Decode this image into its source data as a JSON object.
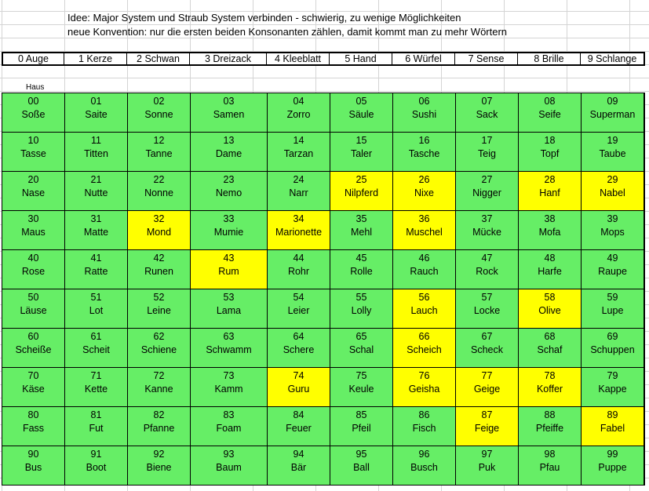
{
  "notes": [
    "Idee: Major System und Straub System verbinden - schwierig, zu wenige Möglichkeiten",
    "neue Konvention: nur die ersten beiden Konsonanten zählen, damit kommt man zu mehr Wörtern"
  ],
  "header": [
    "0 Auge",
    "1 Kerze",
    "2 Schwan",
    "3 Dreizack",
    "4 Kleeblatt",
    "5 Hand",
    "6 Würfel",
    "7 Sense",
    "8 Brille",
    "9 Schlange"
  ],
  "row_label": "Haus",
  "colors": {
    "green": "#66ee66",
    "yellow": "#ffff00"
  },
  "cells": [
    {
      "num": "00",
      "word": "Soße"
    },
    {
      "num": "01",
      "word": "Saite"
    },
    {
      "num": "02",
      "word": "Sonne"
    },
    {
      "num": "03",
      "word": "Samen"
    },
    {
      "num": "04",
      "word": "Zorro"
    },
    {
      "num": "05",
      "word": "Säule"
    },
    {
      "num": "06",
      "word": "Sushi"
    },
    {
      "num": "07",
      "word": "Sack"
    },
    {
      "num": "08",
      "word": "Seife"
    },
    {
      "num": "09",
      "word": "Superman"
    },
    {
      "num": "10",
      "word": "Tasse"
    },
    {
      "num": "11",
      "word": "Titten"
    },
    {
      "num": "12",
      "word": "Tanne"
    },
    {
      "num": "13",
      "word": "Dame"
    },
    {
      "num": "14",
      "word": "Tarzan"
    },
    {
      "num": "15",
      "word": "Taler"
    },
    {
      "num": "16",
      "word": "Tasche"
    },
    {
      "num": "17",
      "word": "Teig"
    },
    {
      "num": "18",
      "word": "Topf"
    },
    {
      "num": "19",
      "word": "Taube"
    },
    {
      "num": "20",
      "word": "Nase"
    },
    {
      "num": "21",
      "word": "Nutte"
    },
    {
      "num": "22",
      "word": "Nonne"
    },
    {
      "num": "23",
      "word": "Nemo"
    },
    {
      "num": "24",
      "word": "Narr"
    },
    {
      "num": "25",
      "word": "Nilpferd",
      "highlight": true
    },
    {
      "num": "26",
      "word": "Nixe",
      "highlight": true
    },
    {
      "num": "27",
      "word": "Nigger"
    },
    {
      "num": "28",
      "word": "Hanf",
      "highlight": true
    },
    {
      "num": "29",
      "word": "Nabel",
      "highlight": true
    },
    {
      "num": "30",
      "word": "Maus"
    },
    {
      "num": "31",
      "word": "Matte"
    },
    {
      "num": "32",
      "word": "Mond",
      "highlight": true
    },
    {
      "num": "33",
      "word": "Mumie"
    },
    {
      "num": "34",
      "word": "Marionette",
      "highlight": true
    },
    {
      "num": "35",
      "word": "Mehl"
    },
    {
      "num": "36",
      "word": "Muschel",
      "highlight": true
    },
    {
      "num": "37",
      "word": "Mücke"
    },
    {
      "num": "38",
      "word": "Mofa"
    },
    {
      "num": "39",
      "word": "Mops"
    },
    {
      "num": "40",
      "word": "Rose"
    },
    {
      "num": "41",
      "word": "Ratte"
    },
    {
      "num": "42",
      "word": "Runen"
    },
    {
      "num": "43",
      "word": "Rum",
      "highlight": true
    },
    {
      "num": "44",
      "word": "Rohr"
    },
    {
      "num": "45",
      "word": "Rolle"
    },
    {
      "num": "46",
      "word": "Rauch"
    },
    {
      "num": "47",
      "word": "Rock"
    },
    {
      "num": "48",
      "word": "Harfe"
    },
    {
      "num": "49",
      "word": "Raupe"
    },
    {
      "num": "50",
      "word": "Läuse"
    },
    {
      "num": "51",
      "word": "Lot"
    },
    {
      "num": "52",
      "word": "Leine"
    },
    {
      "num": "53",
      "word": "Lama"
    },
    {
      "num": "54",
      "word": "Leier"
    },
    {
      "num": "55",
      "word": "Lolly"
    },
    {
      "num": "56",
      "word": "Lauch",
      "highlight": true
    },
    {
      "num": "57",
      "word": "Locke"
    },
    {
      "num": "58",
      "word": "Olive",
      "highlight": true
    },
    {
      "num": "59",
      "word": "Lupe"
    },
    {
      "num": "60",
      "word": "Scheiße"
    },
    {
      "num": "61",
      "word": "Scheit"
    },
    {
      "num": "62",
      "word": "Schiene"
    },
    {
      "num": "63",
      "word": "Schwamm"
    },
    {
      "num": "64",
      "word": "Schere"
    },
    {
      "num": "65",
      "word": "Schal"
    },
    {
      "num": "66",
      "word": "Scheich",
      "highlight": true
    },
    {
      "num": "67",
      "word": "Scheck"
    },
    {
      "num": "68",
      "word": "Schaf"
    },
    {
      "num": "69",
      "word": "Schuppen"
    },
    {
      "num": "70",
      "word": "Käse"
    },
    {
      "num": "71",
      "word": "Kette"
    },
    {
      "num": "72",
      "word": "Kanne"
    },
    {
      "num": "73",
      "word": "Kamm"
    },
    {
      "num": "74",
      "word": "Guru",
      "highlight": true
    },
    {
      "num": "75",
      "word": "Keule"
    },
    {
      "num": "76",
      "word": "Geisha",
      "highlight": true
    },
    {
      "num": "77",
      "word": "Geige",
      "highlight": true
    },
    {
      "num": "78",
      "word": "Koffer",
      "highlight": true
    },
    {
      "num": "79",
      "word": "Kappe"
    },
    {
      "num": "80",
      "word": "Fass"
    },
    {
      "num": "81",
      "word": "Fut"
    },
    {
      "num": "82",
      "word": "Pfanne"
    },
    {
      "num": "83",
      "word": "Foam"
    },
    {
      "num": "84",
      "word": "Feuer"
    },
    {
      "num": "85",
      "word": "Pfeil"
    },
    {
      "num": "86",
      "word": "Fisch"
    },
    {
      "num": "87",
      "word": "Feige",
      "highlight": true
    },
    {
      "num": "88",
      "word": "Pfeiffe"
    },
    {
      "num": "89",
      "word": "Fabel",
      "highlight": true
    },
    {
      "num": "90",
      "word": "Bus"
    },
    {
      "num": "91",
      "word": "Boot"
    },
    {
      "num": "92",
      "word": "Biene"
    },
    {
      "num": "93",
      "word": "Baum"
    },
    {
      "num": "94",
      "word": "Bär"
    },
    {
      "num": "95",
      "word": "Ball"
    },
    {
      "num": "96",
      "word": "Busch"
    },
    {
      "num": "97",
      "word": "Puk"
    },
    {
      "num": "98",
      "word": "Pfau"
    },
    {
      "num": "99",
      "word": "Puppe"
    }
  ]
}
